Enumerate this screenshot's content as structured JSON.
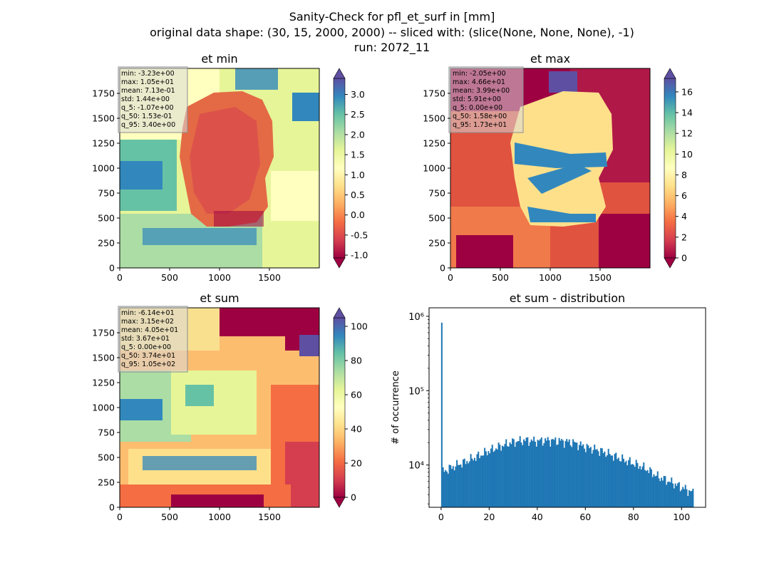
{
  "figure": {
    "suptitle": [
      "Sanity-Check for pfl_et_surf in [mm]",
      "original data shape: (30, 15, 2000, 2000) -- sliced with: (slice(None, None, None), -1)",
      "run: 2072_11"
    ]
  },
  "chart_data": [
    {
      "type": "heatmap",
      "title": "et min",
      "colormap": "Spectral",
      "xlim": [
        0,
        2000
      ],
      "ylim": [
        0,
        2000
      ],
      "xticks": [
        0,
        500,
        1000,
        1500
      ],
      "yticks": [
        0,
        250,
        500,
        750,
        1000,
        1250,
        1500,
        1750
      ],
      "colorbar": {
        "vmin": -1.07,
        "vmax": 3.4,
        "ticks": [
          "-1.0",
          "-0.5",
          "0.0",
          "0.5",
          "1.0",
          "1.5",
          "2.0",
          "2.5",
          "3.0"
        ],
        "tick_values": [
          -1.0,
          -0.5,
          0.0,
          0.5,
          1.0,
          1.5,
          2.0,
          2.5,
          3.0
        ],
        "extend": "both"
      },
      "stats": [
        "min: -3.23e+00",
        "max: 1.05e+01",
        "mean: 7.13e-01",
        "std: 1.44e+00",
        "q_5: -1.07e+00",
        "q_50: 1.53e-01",
        "q_95: 3.40e+00"
      ]
    },
    {
      "type": "heatmap",
      "title": "et max",
      "colormap": "Spectral",
      "xlim": [
        0,
        2000
      ],
      "ylim": [
        0,
        2000
      ],
      "xticks": [
        0,
        500,
        1000,
        1500
      ],
      "yticks": [
        0,
        250,
        500,
        750,
        1000,
        1250,
        1500,
        1750
      ],
      "colorbar": {
        "vmin": 0.0,
        "vmax": 17.3,
        "ticks": [
          "0",
          "2",
          "4",
          "6",
          "8",
          "10",
          "12",
          "14",
          "16"
        ],
        "tick_values": [
          0,
          2,
          4,
          6,
          8,
          10,
          12,
          14,
          16
        ],
        "extend": "both"
      },
      "stats": [
        "min: -2.05e+00",
        "max: 4.66e+01",
        "mean: 3.99e+00",
        "std: 5.91e+00",
        "q_5: 0.00e+00",
        "q_50: 1.58e+00",
        "q_95: 1.73e+01"
      ]
    },
    {
      "type": "heatmap",
      "title": "et sum",
      "colormap": "Spectral",
      "xlim": [
        0,
        2000
      ],
      "ylim": [
        0,
        2000
      ],
      "xticks": [
        0,
        500,
        1000,
        1500
      ],
      "yticks": [
        0,
        250,
        500,
        750,
        1000,
        1250,
        1500,
        1750
      ],
      "colorbar": {
        "vmin": 0.0,
        "vmax": 105.0,
        "ticks": [
          "0",
          "20",
          "40",
          "60",
          "80",
          "100"
        ],
        "tick_values": [
          0,
          20,
          40,
          60,
          80,
          100
        ],
        "extend": "both"
      },
      "stats": [
        "min: -6.14e+01",
        "max: 3.15e+02",
        "mean: 4.05e+01",
        "std: 3.67e+01",
        "q_5: 0.00e+00",
        "q_50: 3.74e+01",
        "q_95: 1.05e+02"
      ]
    },
    {
      "type": "bar",
      "title": "et sum - distribution",
      "ylabel": "# of occurrence",
      "xlabel": "",
      "yscale": "log",
      "xlim": [
        -5,
        110
      ],
      "ylim": [
        2700,
        1300000
      ],
      "xticks": [
        0,
        20,
        40,
        60,
        80,
        100
      ],
      "yticks": [
        {
          "value": 10000,
          "label": "10⁴"
        },
        {
          "value": 100000,
          "label": "10⁵"
        },
        {
          "value": 1000000,
          "label": "10⁶"
        }
      ],
      "color": "#1f77b4",
      "bin_range": [
        0,
        105
      ],
      "bins": 200,
      "spike": {
        "x": 0,
        "value": 820000
      },
      "profile": [
        {
          "x": 0.5,
          "y": 8000
        },
        {
          "x": 5,
          "y": 9500
        },
        {
          "x": 10,
          "y": 11000
        },
        {
          "x": 15,
          "y": 13000
        },
        {
          "x": 20,
          "y": 15500
        },
        {
          "x": 25,
          "y": 18000
        },
        {
          "x": 30,
          "y": 20500
        },
        {
          "x": 35,
          "y": 21500
        },
        {
          "x": 40,
          "y": 21000
        },
        {
          "x": 45,
          "y": 21500
        },
        {
          "x": 50,
          "y": 21000
        },
        {
          "x": 55,
          "y": 20000
        },
        {
          "x": 60,
          "y": 17500
        },
        {
          "x": 65,
          "y": 16000
        },
        {
          "x": 70,
          "y": 14000
        },
        {
          "x": 75,
          "y": 12000
        },
        {
          "x": 80,
          "y": 10500
        },
        {
          "x": 85,
          "y": 9000
        },
        {
          "x": 90,
          "y": 7000
        },
        {
          "x": 95,
          "y": 6000
        },
        {
          "x": 100,
          "y": 5000
        },
        {
          "x": 105,
          "y": 4200
        }
      ]
    }
  ]
}
